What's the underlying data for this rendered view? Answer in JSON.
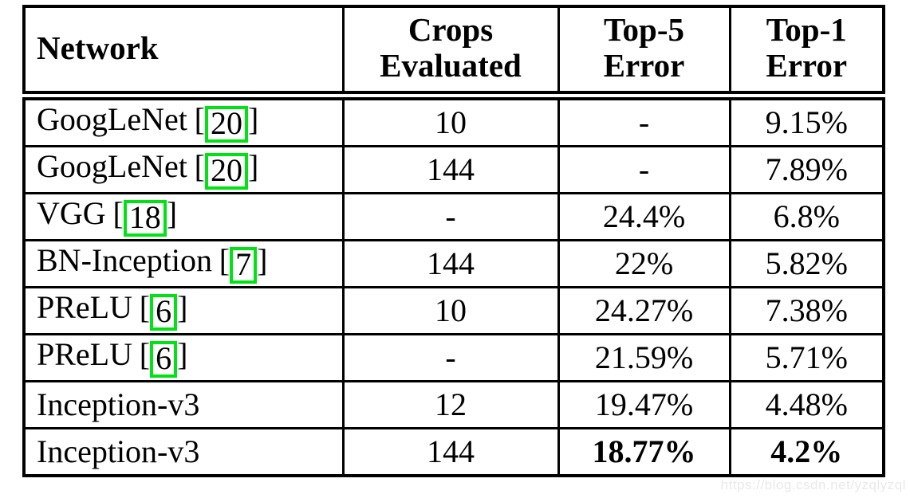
{
  "page": {
    "background_color": "#ffffff",
    "text_color": "#000000",
    "citation_box_color": "#00e312",
    "watermark": "https://blog.csdn.net/yzqlyzql"
  },
  "table": {
    "headers": {
      "network": "Network",
      "crops": "Crops\nEvaluated",
      "top5": "Top-5\nError",
      "top1": "Top-1\nError"
    },
    "rows": [
      {
        "network": "GoogLeNet",
        "ref": "20",
        "crops": "10",
        "top5": "-",
        "top1": "9.15%",
        "emphasis": false
      },
      {
        "network": "GoogLeNet",
        "ref": "20",
        "crops": "144",
        "top5": "-",
        "top1": "7.89%",
        "emphasis": false
      },
      {
        "network": "VGG",
        "ref": "18",
        "crops": "-",
        "top5": "24.4%",
        "top1": "6.8%",
        "emphasis": false
      },
      {
        "network": "BN-Inception",
        "ref": "7",
        "crops": "144",
        "top5": "22%",
        "top1": "5.82%",
        "emphasis": false
      },
      {
        "network": "PReLU",
        "ref": "6",
        "crops": "10",
        "top5": "24.27%",
        "top1": "7.38%",
        "emphasis": false
      },
      {
        "network": "PReLU",
        "ref": "6",
        "crops": "-",
        "top5": "21.59%",
        "top1": "5.71%",
        "emphasis": false
      },
      {
        "network": "Inception-v3",
        "ref": null,
        "crops": "12",
        "top5": "19.47%",
        "top1": "4.48%",
        "emphasis": false
      },
      {
        "network": "Inception-v3",
        "ref": null,
        "crops": "144",
        "top5": "18.77%",
        "top1": "4.2%",
        "emphasis": true
      }
    ],
    "bracket_open": "[",
    "bracket_close": "]"
  }
}
